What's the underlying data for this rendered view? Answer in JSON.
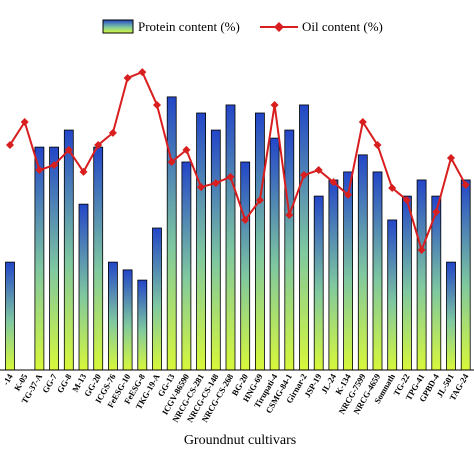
{
  "chart_data": {
    "type": "bar_line",
    "xlabel": "Groundnut cultivars",
    "categories": [
      "-14",
      "K-05",
      "TG-37-A",
      "GG-7",
      "GG-8",
      "M-13",
      "GG-20",
      "ICGS-76",
      "FeESG-10",
      "FeESG-8",
      "TKG-19-A",
      "GG-13",
      "ICGV-86590",
      "NRCG-CS-281",
      "NRCG-CS-148",
      "NRCG-CS-268",
      "BG-20",
      "HNG-69",
      "Tirupati-4",
      "CSMG-84-1",
      "Girnar-2",
      "JSP-19",
      "JL-24",
      "K-134",
      "NRCG-7599",
      "NRCG-4659",
      "Somnath",
      "TG-22",
      "TPG-41",
      "GPBD-4",
      "JL-501",
      "TAG-24"
    ],
    "series": [
      {
        "name": "Protein content (%)",
        "kind": "bar",
        "color": "#2346c8",
        "values": [
          34.8,
          null,
          71.9,
          71.9,
          77.4,
          53.5,
          71.9,
          34.8,
          32.3,
          29,
          45.8,
          88.1,
          67.1,
          82.9,
          77.4,
          85.5,
          67.1,
          82.9,
          74.8,
          77.4,
          85.5,
          56.1,
          61.3,
          63.9,
          69.4,
          63.9,
          48.4,
          56.1,
          61.3,
          56.1,
          34.8,
          61.3
        ]
      },
      {
        "name": "Oil content (%)",
        "kind": "line",
        "color": "#d81e1e",
        "values": [
          72.6,
          80,
          64.5,
          66.1,
          71,
          63.9,
          72.6,
          76.5,
          94.2,
          96.1,
          85.5,
          67.1,
          71,
          59,
          60.3,
          62.3,
          48.4,
          54.8,
          85.5,
          50,
          62.9,
          64.5,
          60.6,
          56.5,
          80,
          72.6,
          58.7,
          54.8,
          38.7,
          51,
          68.4,
          59.7
        ]
      }
    ],
    "ylim": [
      0,
      100
    ]
  }
}
